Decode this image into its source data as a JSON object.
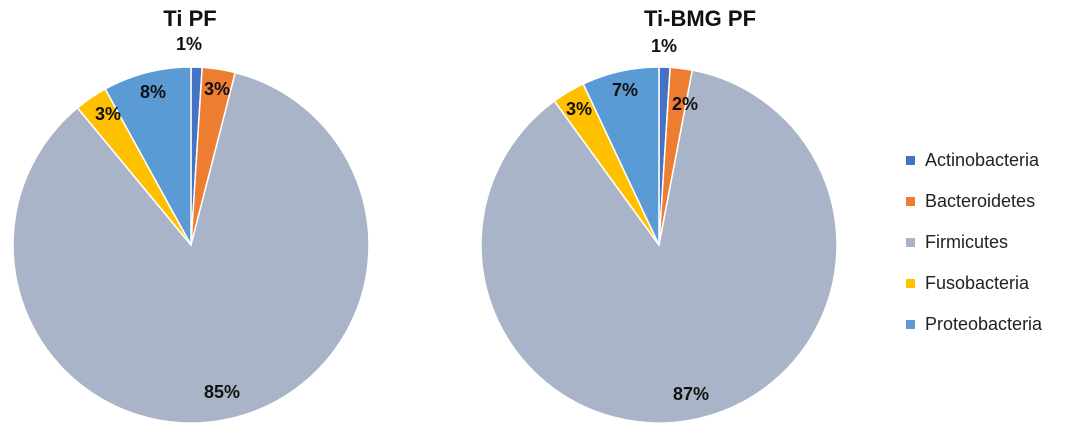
{
  "chart_data": [
    {
      "type": "pie",
      "title": "Ti PF",
      "categories": [
        "Actinobacteria",
        "Bacteroidetes",
        "Firmicutes",
        "Fusobacteria",
        "Proteobacteria"
      ],
      "values": [
        1,
        3,
        85,
        3,
        8
      ],
      "labels": [
        "1%",
        "3%",
        "85%",
        "3%",
        "8%"
      ]
    },
    {
      "type": "pie",
      "title": "Ti-BMG PF",
      "categories": [
        "Actinobacteria",
        "Bacteroidetes",
        "Firmicutes",
        "Fusobacteria",
        "Proteobacteria"
      ],
      "values": [
        1,
        2,
        87,
        3,
        7
      ],
      "labels": [
        "1%",
        "2%",
        "87%",
        "3%",
        "7%"
      ]
    }
  ],
  "legend": {
    "position": "right",
    "items": [
      {
        "label": "Actinobacteria",
        "color": "#4472C4"
      },
      {
        "label": "Bacteroidetes",
        "color": "#ED7D31"
      },
      {
        "label": "Firmicutes",
        "color": "#A9B4C8"
      },
      {
        "label": "Fusobacteria",
        "color": "#FFC000"
      },
      {
        "label": "Proteobacteria",
        "color": "#5B9BD5"
      }
    ]
  }
}
